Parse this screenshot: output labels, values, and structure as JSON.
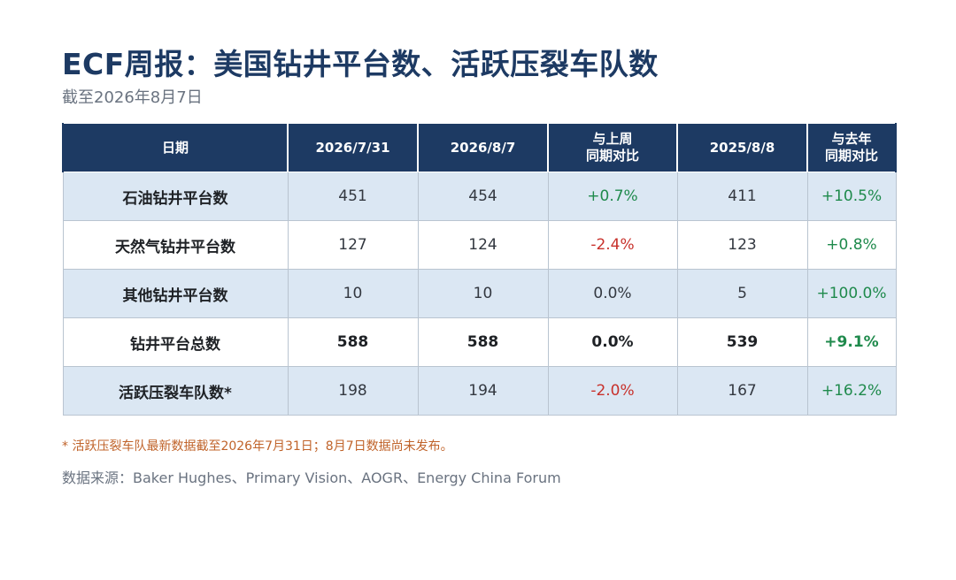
{
  "title": "ECF周报：美国钻井平台数、活跃压裂车队数",
  "subtitle": "截至2026年8月7日",
  "table": {
    "headers": [
      [
        "日期"
      ],
      [
        "2026/7/31"
      ],
      [
        "2026/8/7"
      ],
      [
        "与上周",
        "同期对比"
      ],
      [
        "2025/8/8"
      ],
      [
        "与去年",
        "同期对比"
      ]
    ],
    "rows": [
      {
        "label": "石油钻井平台数",
        "v1": "451",
        "v2": "454",
        "wow": "+0.7%",
        "wow_tone": "pos",
        "v3": "411",
        "yoy": "+10.5%",
        "yoy_tone": "pos",
        "shaded": true,
        "bold": false
      },
      {
        "label": "天然气钻井平台数",
        "v1": "127",
        "v2": "124",
        "wow": "-2.4%",
        "wow_tone": "neg",
        "v3": "123",
        "yoy": "+0.8%",
        "yoy_tone": "pos",
        "shaded": false,
        "bold": false
      },
      {
        "label": "其他钻井平台数",
        "v1": "10",
        "v2": "10",
        "wow": "0.0%",
        "wow_tone": "neu",
        "v3": "5",
        "yoy": "+100.0%",
        "yoy_tone": "pos",
        "shaded": true,
        "bold": false
      },
      {
        "label": "钻井平台总数",
        "v1": "588",
        "v2": "588",
        "wow": "0.0%",
        "wow_tone": "neu",
        "v3": "539",
        "yoy": "+9.1%",
        "yoy_tone": "pos",
        "shaded": false,
        "bold": true
      },
      {
        "label": "活跃压裂车队数*",
        "v1": "198",
        "v2": "194",
        "wow": "-2.0%",
        "wow_tone": "neg",
        "v3": "167",
        "yoy": "+16.2%",
        "yoy_tone": "pos",
        "shaded": true,
        "bold": false
      }
    ]
  },
  "footnote": "* 活跃压裂车队最新数据截至2026年7月31日；8月7日数据尚未发布。",
  "source": "数据来源：Baker Hughes、Primary Vision、AOGR、Energy China Forum",
  "colors": {
    "header_bg": "#1d3a63",
    "shaded_row": "#dbe7f3",
    "positive": "#1f8a4c",
    "negative": "#c8312b",
    "footnote": "#c0632a"
  }
}
